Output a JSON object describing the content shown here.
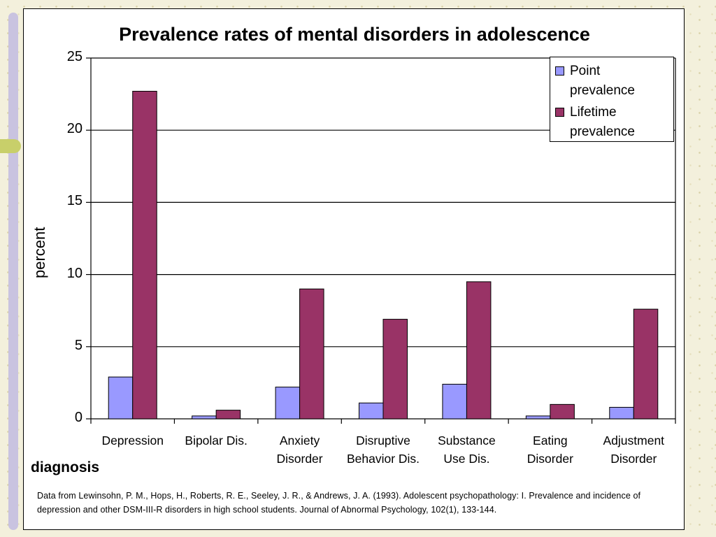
{
  "chart_data": {
    "type": "bar",
    "title": "Prevalence rates of mental disorders in adolescence",
    "xlabel": "diagnosis",
    "ylabel": "percent",
    "ylim": [
      0,
      25
    ],
    "yticks": [
      "0",
      "5",
      "10",
      "15",
      "20",
      "25"
    ],
    "grid": true,
    "legend_position": "top-right",
    "categories": [
      "Depression",
      "Bipolar Dis.",
      "Anxiety Disorder",
      "Disruptive Behavior Dis.",
      "Substance Use Dis.",
      "Eating Disorder",
      "Adjustment Disorder"
    ],
    "series": [
      {
        "name": "Point prevalence",
        "color": "#9999ff",
        "values": [
          2.9,
          0.2,
          2.2,
          1.1,
          2.4,
          0.2,
          0.8
        ]
      },
      {
        "name": "Lifetime prevalence",
        "color": "#993366",
        "values": [
          22.7,
          0.6,
          9.0,
          6.9,
          9.5,
          1.0,
          7.6
        ]
      }
    ]
  },
  "citation": "Data from  Lewinsohn, P. M., Hops, H., Roberts, R. E., Seeley, J. R., & Andrews, J. A. (1993). Adolescent psychopathology: I.  Prevalence and incidence of depression and other DSM-III-R  disorders in high school students. Journal of Abnormal Psychology, 102(1), 133-144."
}
